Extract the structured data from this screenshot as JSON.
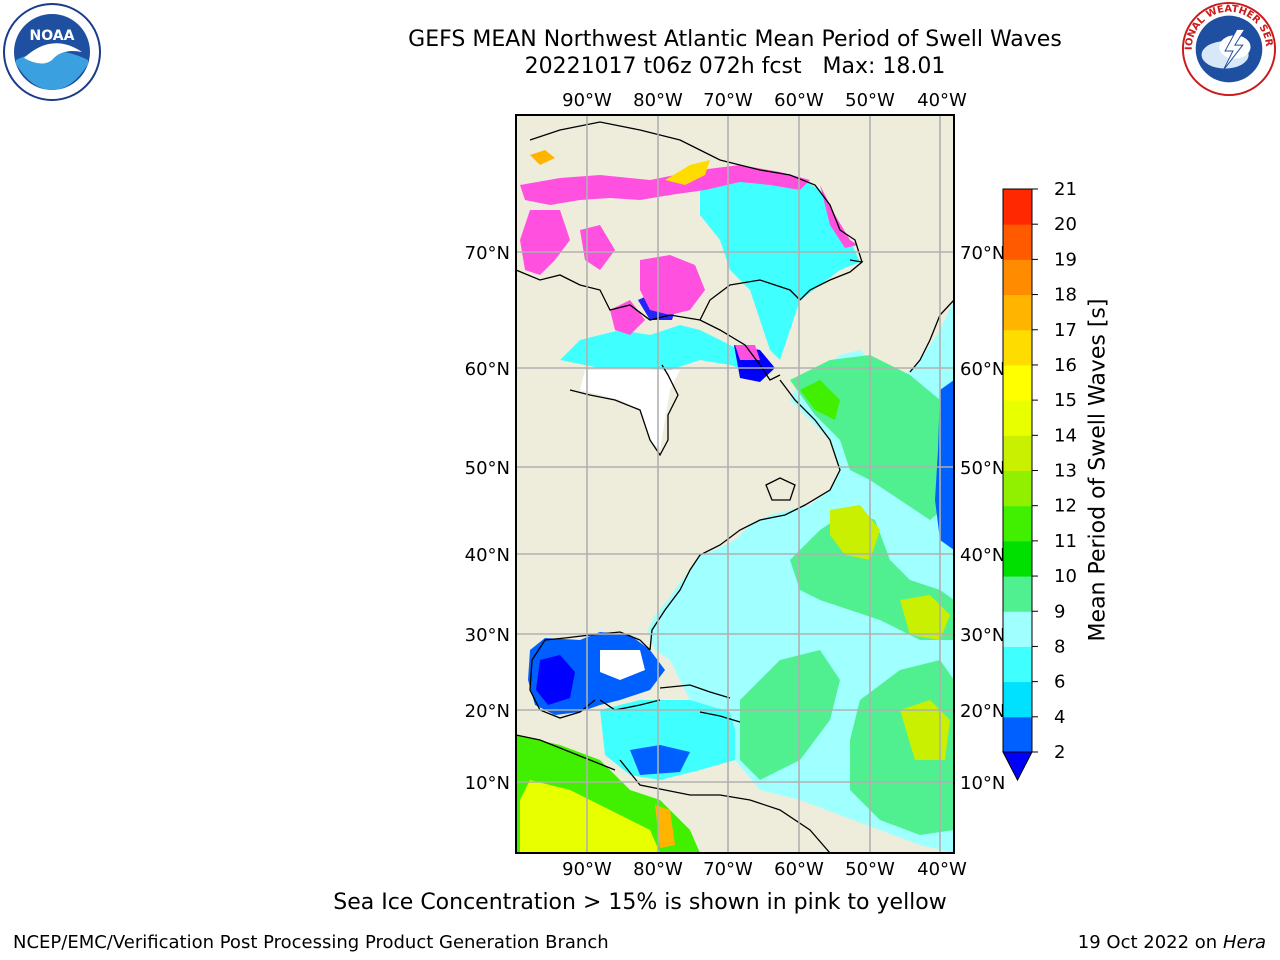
{
  "header": {
    "title_line1": "GEFS MEAN Northwest Atlantic Mean Period of Swell Waves",
    "title_line2": "20221017 t06z 072h fcst   Max: 18.01"
  },
  "logos": {
    "left": "noaa-logo",
    "left_text": "NOAA",
    "right": "national-weather-service-logo",
    "right_text": "NATIONAL WEATHER SERVICE"
  },
  "map": {
    "lon_labels": [
      "90°W",
      "80°W",
      "70°W",
      "60°W",
      "50°W",
      "40°W"
    ],
    "lat_labels": [
      "70°N",
      "60°N",
      "50°N",
      "40°N",
      "30°N",
      "20°N",
      "10°N"
    ],
    "colors": {
      "land": "#eeeddc",
      "gridline": "#b0b0b0",
      "coast": "#000000"
    }
  },
  "colorbar": {
    "title": "Mean Period of Swell Waves [s]",
    "ticks": [
      "2",
      "4",
      "6",
      "8",
      "9",
      "10",
      "11",
      "12",
      "13",
      "14",
      "15",
      "16",
      "17",
      "18",
      "19",
      "20",
      "21"
    ],
    "colors": [
      "#0060ff",
      "#00e0ff",
      "#40ffff",
      "#a0ffff",
      "#50f090",
      "#00e000",
      "#40f000",
      "#90f000",
      "#c8f000",
      "#e8ff00",
      "#ffff00",
      "#ffdc00",
      "#ffb400",
      "#ff8c00",
      "#ff5a00",
      "#ff2800"
    ],
    "under_color": "#0000ff"
  },
  "caption": "Sea Ice Concentration > 15% is shown in pink to yellow",
  "footer": {
    "left": "NCEP/EMC/Verification Post Processing Product Generation Branch",
    "right_date": "19 Oct 2022 on ",
    "right_machine": "Hera"
  }
}
